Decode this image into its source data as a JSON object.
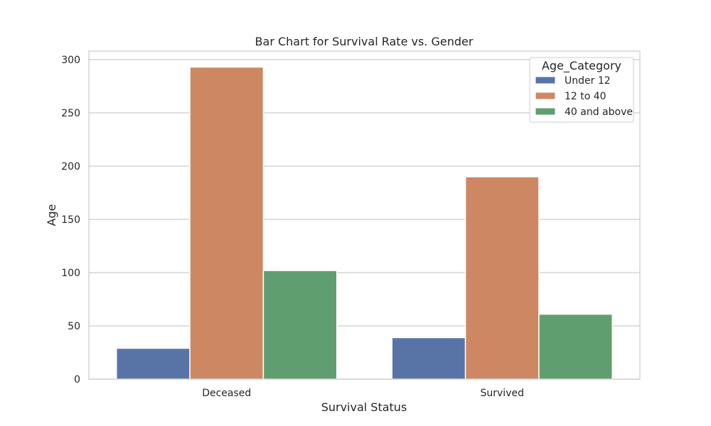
{
  "chart_data": {
    "type": "bar",
    "title": "Bar Chart for Survival Rate vs. Gender",
    "xlabel": "Survival Status",
    "ylabel": "Age",
    "categories": [
      "Deceased",
      "Survived"
    ],
    "series": [
      {
        "name": "Under 12",
        "values": [
          29,
          39
        ],
        "color": "#5874a7"
      },
      {
        "name": "12 to 40",
        "values": [
          293,
          190
        ],
        "color": "#cd8863"
      },
      {
        "name": "40 and above",
        "values": [
          102,
          61
        ],
        "color": "#5f9f6f"
      }
    ],
    "ylim": [
      0,
      308
    ],
    "yticks": [
      0,
      50,
      100,
      150,
      200,
      250,
      300
    ],
    "grid": true,
    "legend": {
      "title": "Age_Category",
      "placement": "top-right"
    }
  }
}
